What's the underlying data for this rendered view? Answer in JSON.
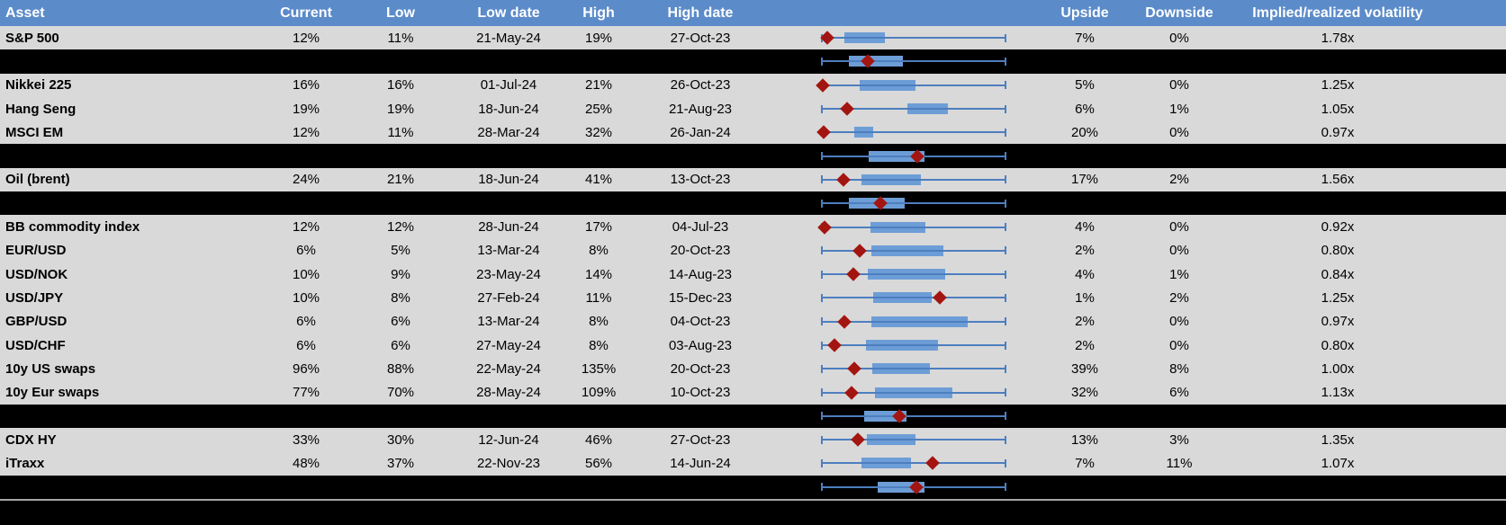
{
  "colors": {
    "header_bg": "#5b8bc9",
    "row_bg": "#d9d9d9",
    "separator_bg": "#000000",
    "box_fill": "#6d9dd6",
    "whisker_line": "#4d7ebf",
    "diamond_marker": "#a31510",
    "footer_divider": "#a6a6a6",
    "header_text": "#ffffff",
    "body_text": "#000000"
  },
  "chart_data": {
    "type": "table",
    "note": "Each row also carries an embedded horizontal box plot; box.lo/box.hi are the box edges and box.marker is the dark-red diamond (current level), all as % of the whisker span (whiskers run full cell width).",
    "columns": [
      "Asset",
      "Current",
      "Low",
      "Low date",
      "High",
      "High date",
      "",
      "Upside",
      "Downside",
      "Implied/realized volatility"
    ],
    "rows": [
      {
        "type": "data",
        "asset": "S&P 500",
        "current": "12%",
        "low": "11%",
        "low_date": "21-May-24",
        "high": "19%",
        "high_date": "27-Oct-23",
        "upside": "7%",
        "downside": "0%",
        "implied": "1.78x",
        "box": {
          "lo": 12.3,
          "hi": 34.3,
          "marker": 3
        }
      },
      {
        "type": "sep",
        "box": {
          "lo": 14.7,
          "hi": 44,
          "marker": 25
        }
      },
      {
        "type": "data",
        "asset": "Nikkei 225",
        "current": "16%",
        "low": "16%",
        "low_date": "01-Jul-24",
        "high": "21%",
        "high_date": "26-Oct-23",
        "upside": "5%",
        "downside": "0%",
        "implied": "1.25x",
        "box": {
          "lo": 20.6,
          "hi": 51,
          "marker": 0.5
        }
      },
      {
        "type": "data",
        "asset": "Hang Seng",
        "current": "19%",
        "low": "19%",
        "low_date": "18-Jun-24",
        "high": "25%",
        "high_date": "21-Aug-23",
        "upside": "6%",
        "downside": "1%",
        "implied": "1.05x",
        "box": {
          "lo": 46.6,
          "hi": 68.6,
          "marker": 13.7
        }
      },
      {
        "type": "data",
        "asset": "MSCI EM",
        "current": "12%",
        "low": "11%",
        "low_date": "28-Mar-24",
        "high": "32%",
        "high_date": "26-Jan-24",
        "upside": "20%",
        "downside": "0%",
        "implied": "0.97x",
        "box": {
          "lo": 17.6,
          "hi": 28,
          "marker": 1
        }
      },
      {
        "type": "sep",
        "box": {
          "lo": 25.5,
          "hi": 55.9,
          "marker": 52
        }
      },
      {
        "type": "data",
        "asset": "Oil (brent)",
        "current": "24%",
        "low": "21%",
        "low_date": "18-Jun-24",
        "high": "41%",
        "high_date": "13-Oct-23",
        "upside": "17%",
        "downside": "2%",
        "implied": "1.56x",
        "box": {
          "lo": 21.6,
          "hi": 53.9,
          "marker": 11.8
        }
      },
      {
        "type": "sep",
        "box": {
          "lo": 14.7,
          "hi": 45.1,
          "marker": 31.9
        }
      },
      {
        "type": "data",
        "asset": "BB commodity index",
        "current": "12%",
        "low": "12%",
        "low_date": "28-Jun-24",
        "high": "17%",
        "high_date": "04-Jul-23",
        "upside": "4%",
        "downside": "0%",
        "implied": "0.92x",
        "box": {
          "lo": 26.5,
          "hi": 56.4,
          "marker": 1.5
        }
      },
      {
        "type": "data",
        "asset": "EUR/USD",
        "current": "6%",
        "low": "5%",
        "low_date": "13-Mar-24",
        "high": "8%",
        "high_date": "20-Oct-23",
        "upside": "2%",
        "downside": "0%",
        "implied": "0.80x",
        "box": {
          "lo": 27,
          "hi": 66.2,
          "marker": 20.6
        }
      },
      {
        "type": "data",
        "asset": "USD/NOK",
        "current": "10%",
        "low": "9%",
        "low_date": "23-May-24",
        "high": "14%",
        "high_date": "14-Aug-23",
        "upside": "4%",
        "downside": "1%",
        "implied": "0.84x",
        "box": {
          "lo": 25,
          "hi": 67.2,
          "marker": 17.2
        }
      },
      {
        "type": "data",
        "asset": "USD/JPY",
        "current": "10%",
        "low": "8%",
        "low_date": "27-Feb-24",
        "high": "11%",
        "high_date": "15-Dec-23",
        "upside": "1%",
        "downside": "2%",
        "implied": "1.25x",
        "box": {
          "lo": 27.9,
          "hi": 59.8,
          "marker": 64.2
        }
      },
      {
        "type": "data",
        "asset": "GBP/USD",
        "current": "6%",
        "low": "6%",
        "low_date": "13-Mar-24",
        "high": "8%",
        "high_date": "04-Oct-23",
        "upside": "2%",
        "downside": "0%",
        "implied": "0.97x",
        "box": {
          "lo": 27,
          "hi": 79.4,
          "marker": 12.3
        }
      },
      {
        "type": "data",
        "asset": "USD/CHF",
        "current": "6%",
        "low": "6%",
        "low_date": "27-May-24",
        "high": "8%",
        "high_date": "03-Aug-23",
        "upside": "2%",
        "downside": "0%",
        "implied": "0.80x",
        "box": {
          "lo": 24,
          "hi": 63.2,
          "marker": 6.9
        }
      },
      {
        "type": "data",
        "asset": "10y US swaps",
        "current": "96%",
        "low": "88%",
        "low_date": "22-May-24",
        "high": "135%",
        "high_date": "20-Oct-23",
        "upside": "39%",
        "downside": "8%",
        "implied": "1.00x",
        "box": {
          "lo": 27.5,
          "hi": 58.8,
          "marker": 17.6
        }
      },
      {
        "type": "data",
        "asset": "10y Eur swaps",
        "current": "77%",
        "low": "70%",
        "low_date": "28-May-24",
        "high": "109%",
        "high_date": "10-Oct-23",
        "upside": "32%",
        "downside": "6%",
        "implied": "1.13x",
        "box": {
          "lo": 28.9,
          "hi": 71.1,
          "marker": 16.2
        }
      },
      {
        "type": "sep",
        "box": {
          "lo": 23,
          "hi": 46.1,
          "marker": 42.2
        }
      },
      {
        "type": "data",
        "asset": "CDX HY",
        "current": "33%",
        "low": "30%",
        "low_date": "12-Jun-24",
        "high": "46%",
        "high_date": "27-Oct-23",
        "upside": "13%",
        "downside": "3%",
        "implied": "1.35x",
        "box": {
          "lo": 24.5,
          "hi": 51,
          "marker": 19.6
        }
      },
      {
        "type": "data",
        "asset": "iTraxx",
        "current": "48%",
        "low": "37%",
        "low_date": "22-Nov-23",
        "high": "56%",
        "high_date": "14-Jun-24",
        "upside": "7%",
        "downside": "11%",
        "implied": "1.07x",
        "box": {
          "lo": 21.6,
          "hi": 48.5,
          "marker": 60.3
        }
      },
      {
        "type": "sep",
        "box": {
          "lo": 30.4,
          "hi": 55.9,
          "marker": 51.5
        }
      }
    ]
  }
}
